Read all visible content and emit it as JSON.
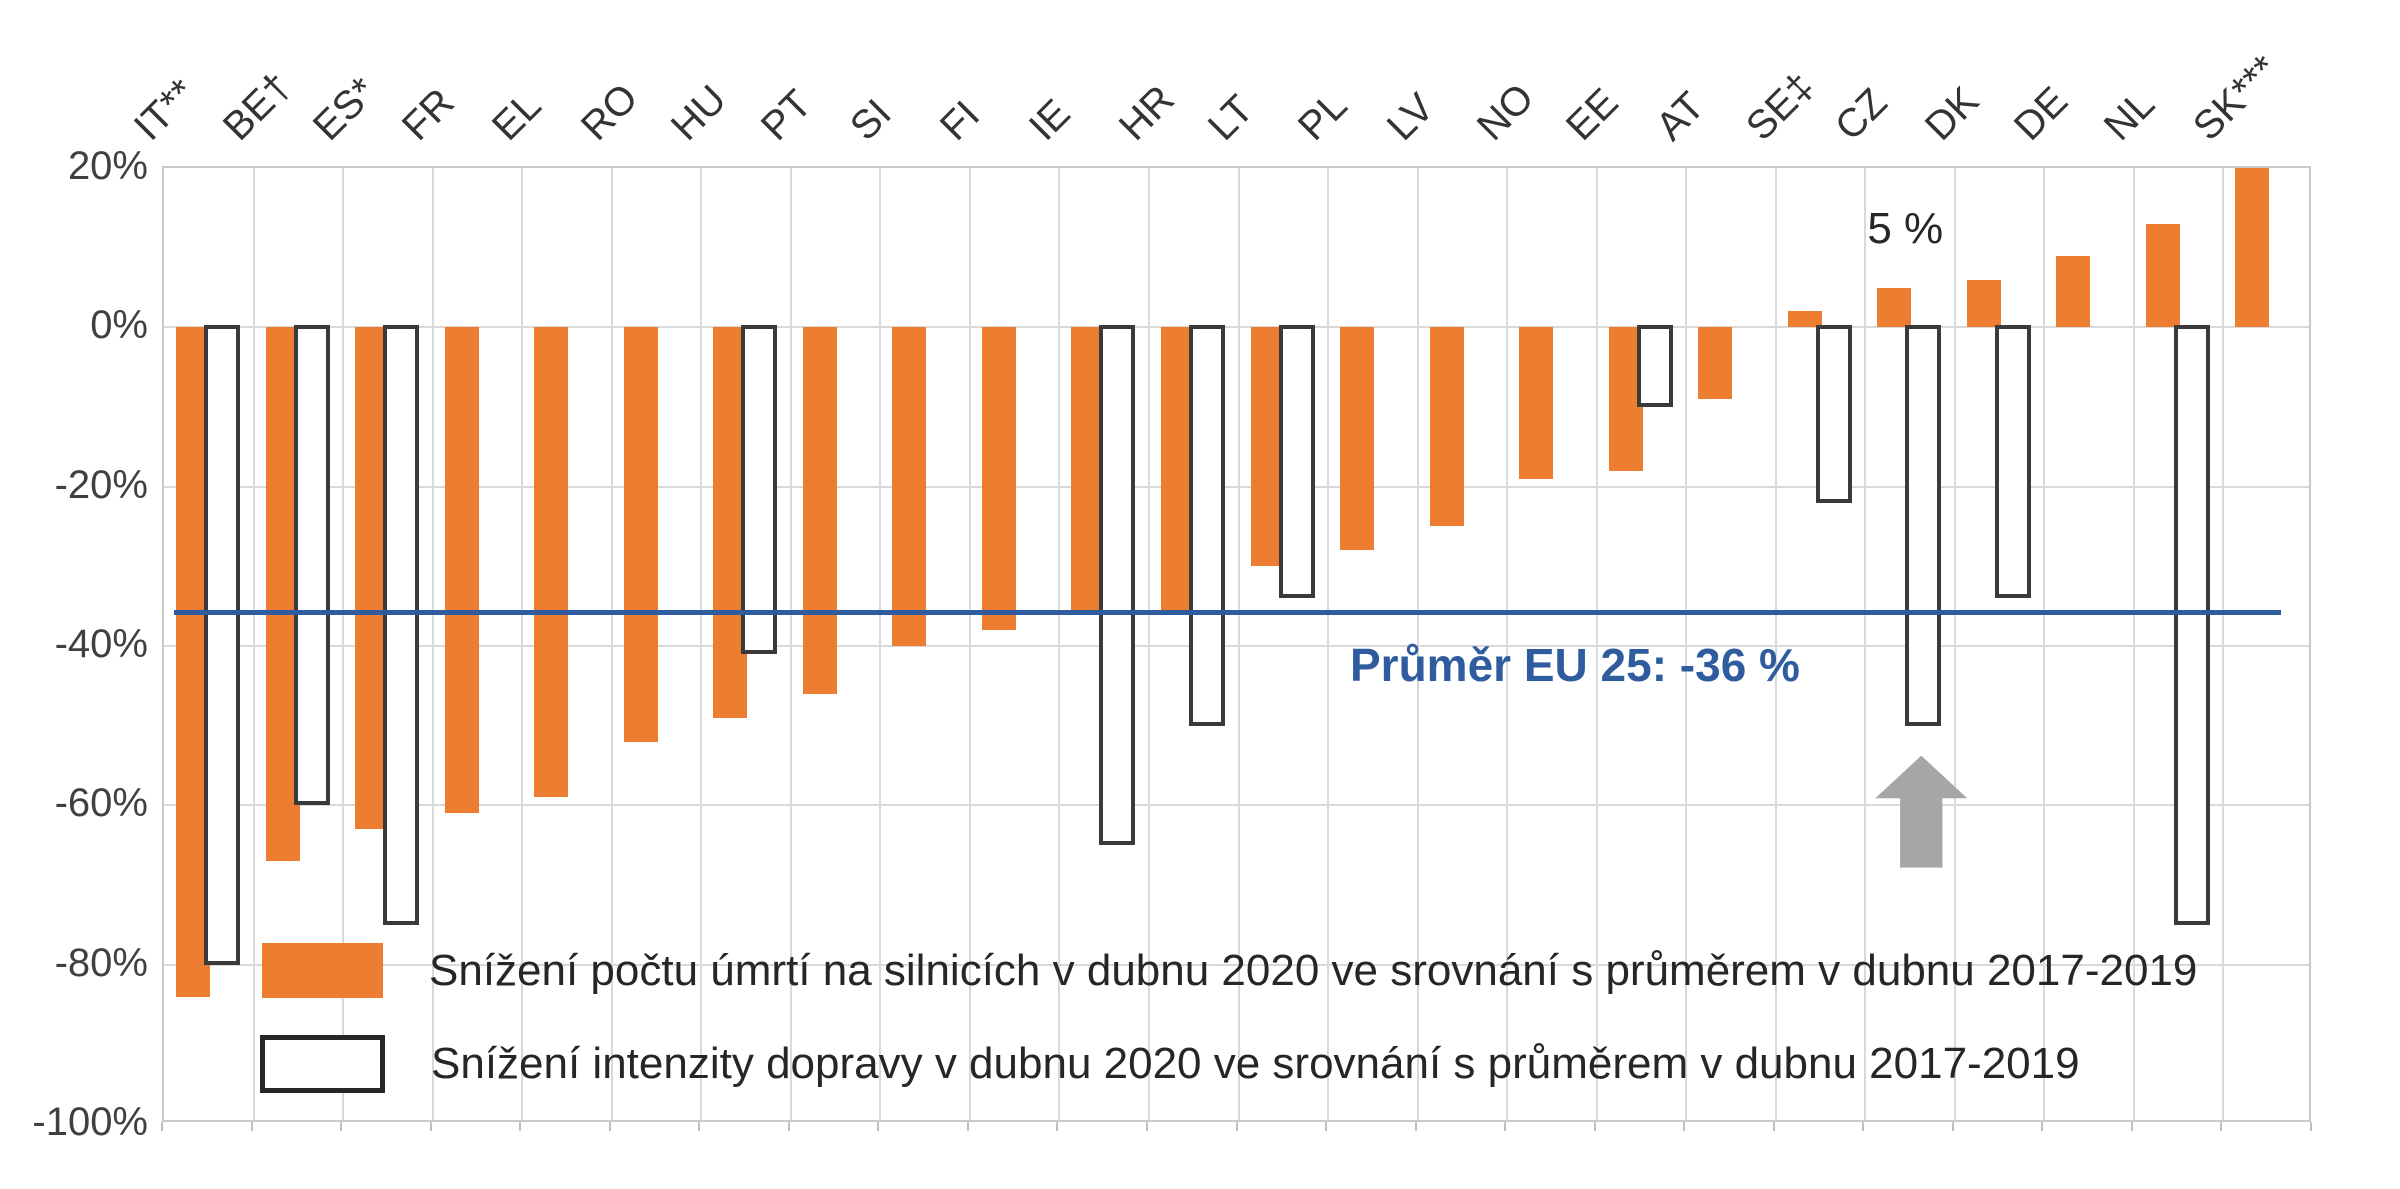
{
  "chart_data": {
    "type": "bar",
    "title": "",
    "categories": [
      "IT**",
      "BE†",
      "ES*",
      "FR",
      "EL",
      "RO",
      "HU",
      "PT",
      "SI",
      "FI",
      "IE",
      "HR",
      "LT",
      "PL",
      "LV",
      "NO",
      "EE",
      "AT",
      "SE‡",
      "CZ",
      "DK",
      "DE",
      "NL",
      "SK***"
    ],
    "series": [
      {
        "name": "Snížení počtu úmrtí na silnicích v dubnu 2020 ve srovnání s průměrem v dubnu 2017-2019",
        "style": "solid-orange",
        "values": [
          -84,
          -67,
          -63,
          -61,
          -59,
          -52,
          -49,
          -46,
          -40,
          -38,
          -36,
          -36,
          -30,
          -28,
          -25,
          -19,
          -18,
          -9,
          2,
          5,
          6,
          9,
          13,
          20
        ]
      },
      {
        "name": "Snížení intenzity dopravy v dubnu 2020 ve srovnání s průměrem v dubnu 2017-2019",
        "style": "white-outline",
        "values": [
          -80,
          -60,
          -75,
          null,
          null,
          null,
          -41,
          null,
          null,
          null,
          -65,
          -50,
          -34,
          null,
          null,
          null,
          -10,
          null,
          -22,
          -50,
          -34,
          null,
          -75,
          null
        ]
      }
    ],
    "ylim": [
      -100,
      20
    ],
    "ytick_step": 20,
    "ytick_labels": [
      "20%",
      "0%",
      "-20%",
      "-40%",
      "-60%",
      "-80%",
      "-100%"
    ],
    "grid": true,
    "legend_position": "inside-bottom-left",
    "average_line": {
      "value": -36,
      "label": "Průměr EU 25: -36 %"
    },
    "annotation": {
      "text": "5 %",
      "category": "CZ",
      "value": 5
    },
    "arrow": {
      "shape": "block-arrow-up",
      "points_to_category": "CZ"
    }
  },
  "colors": {
    "bar_deaths": "#ED7D31",
    "bar_traffic_outline": "#3a3a3a",
    "average_line": "#2E5C9E",
    "arrow": "#A6A6A6",
    "gridline": "#D9D9D9",
    "axis_text": "#404040"
  }
}
